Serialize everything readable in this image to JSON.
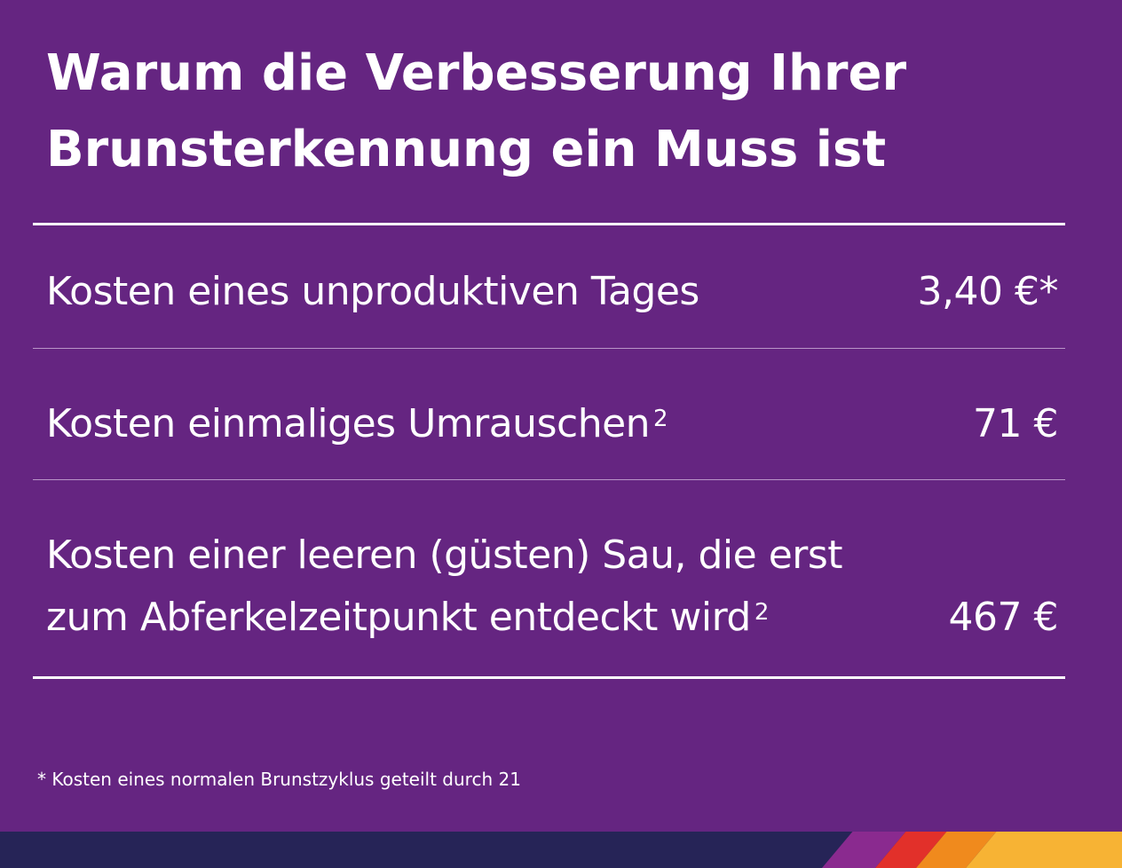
{
  "title": {
    "line1": "Warum die Verbesserung Ihrer",
    "line2": "Brunsterkennung ein Muss ist"
  },
  "rows": [
    {
      "label": "Kosten eines unproduktiven Tages",
      "sup": "",
      "value": "3,40 €*"
    },
    {
      "label": "Kosten einmaliges Umrauschen",
      "sup": "2",
      "value": "71 €"
    },
    {
      "label_line1": "Kosten einer leeren (güsten) Sau, die erst",
      "label_line2": "zum Abferkelzeitpunkt entdeckt wird",
      "sup": "2",
      "value": "467 €"
    }
  ],
  "footnote": "* Kosten eines normalen Brunstzyklus geteilt durch 21",
  "colors": {
    "background": "#652581",
    "text": "#ffffff",
    "footer_base": "#262457",
    "stripe_purple": "#8a2a8f",
    "stripe_red": "#e2302a",
    "stripe_orange": "#f08a1d",
    "stripe_yellow": "#f7b334"
  }
}
